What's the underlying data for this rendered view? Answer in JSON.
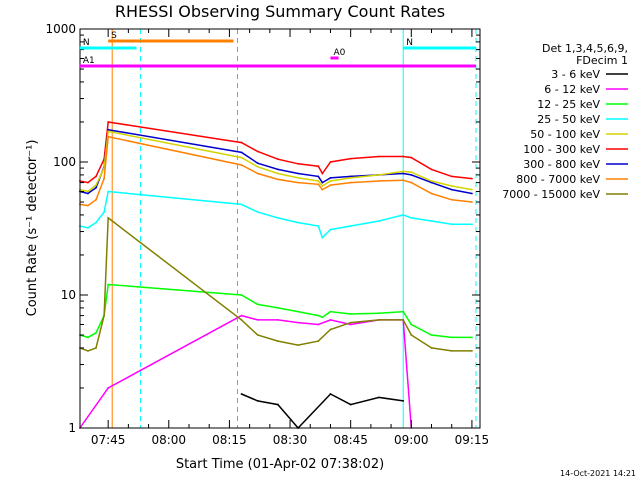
{
  "chart_data": {
    "type": "line",
    "title": "RHESSI Observing Summary Count Rates",
    "xlabel": "Start Time (01-Apr-02 07:38:02)",
    "ylabel": "Count Rate (s⁻¹ detector⁻¹)",
    "y_scale": "log",
    "ylim": [
      1,
      1000
    ],
    "xlim": [
      "07:38:02",
      "09:17:00"
    ],
    "x_ticks": [
      "07:45",
      "08:00",
      "08:15",
      "08:30",
      "08:45",
      "09:00",
      "09:15"
    ],
    "y_ticks": [
      "1",
      "10",
      "100",
      "1000"
    ],
    "legend": {
      "placement": "right",
      "header": [
        "Det 1,3,4,5,6,9,",
        "FDecim 1"
      ],
      "entries": [
        {
          "label": "3 - 6 keV",
          "color": "#000000"
        },
        {
          "label": "6 - 12 keV",
          "color": "#ff00ff"
        },
        {
          "label": "12 - 25 keV",
          "color": "#00ff00"
        },
        {
          "label": "25 - 50 keV",
          "color": "#00ffff"
        },
        {
          "label": "50 - 100 keV",
          "color": "#d4d400"
        },
        {
          "label": "100 - 300 keV",
          "color": "#ff0000"
        },
        {
          "label": "300 - 800 keV",
          "color": "#0000cc"
        },
        {
          "label": "800 - 7000 keV",
          "color": "#ff8000"
        },
        {
          "label": "7000 - 15000 keV",
          "color": "#808000"
        }
      ]
    },
    "flags": [
      {
        "label": "S",
        "color": "#ff8000",
        "start": "07:45",
        "end": "08:16"
      },
      {
        "label": "N",
        "color": "#00ffff",
        "start": "07:38",
        "end": "07:52"
      },
      {
        "label": "N",
        "color": "#00ffff",
        "start": "08:58",
        "end": "09:16"
      },
      {
        "label": "A0",
        "color": "#ff00ff",
        "start": "08:40",
        "end": "08:42"
      },
      {
        "label": "A1",
        "color": "#ff00ff",
        "start": "07:38",
        "end": "09:16"
      }
    ],
    "vertical_markers": [
      {
        "time": "07:46",
        "color": "#ff8000",
        "style": "solid"
      },
      {
        "time": "07:53",
        "color": "#00ffff",
        "style": "dashed"
      },
      {
        "time": "08:17",
        "color": "#ff8000",
        "style": "dashed"
      },
      {
        "time": "08:58",
        "color": "#00ffff",
        "style": "solid"
      },
      {
        "time": "09:16",
        "color": "#00ffff",
        "style": "dashed"
      }
    ],
    "series": [
      {
        "name": "100 - 300 keV",
        "color": "#ff0000",
        "points": [
          [
            "07:38",
            72
          ],
          [
            "07:40",
            70
          ],
          [
            "07:42",
            78
          ],
          [
            "07:44",
            105
          ],
          [
            "07:45",
            200
          ],
          [
            "08:18",
            140
          ],
          [
            "08:22",
            120
          ],
          [
            "08:27",
            105
          ],
          [
            "08:32",
            97
          ],
          [
            "08:37",
            93
          ],
          [
            "08:38",
            82
          ],
          [
            "08:40",
            100
          ],
          [
            "08:45",
            106
          ],
          [
            "08:52",
            110
          ],
          [
            "08:58",
            110
          ],
          [
            "09:00",
            108
          ],
          [
            "09:05",
            88
          ],
          [
            "09:10",
            78
          ],
          [
            "09:15",
            75
          ]
        ]
      },
      {
        "name": "300 - 800 keV",
        "color": "#0000cc",
        "points": [
          [
            "07:38",
            60
          ],
          [
            "07:40",
            58
          ],
          [
            "07:42",
            64
          ],
          [
            "07:44",
            92
          ],
          [
            "07:45",
            175
          ],
          [
            "08:18",
            118
          ],
          [
            "08:22",
            98
          ],
          [
            "08:27",
            88
          ],
          [
            "08:32",
            82
          ],
          [
            "08:37",
            78
          ],
          [
            "08:38",
            70
          ],
          [
            "08:40",
            76
          ],
          [
            "08:45",
            78
          ],
          [
            "08:52",
            80
          ],
          [
            "08:58",
            82
          ],
          [
            "09:00",
            80
          ],
          [
            "09:05",
            70
          ],
          [
            "09:10",
            62
          ],
          [
            "09:15",
            58
          ]
        ]
      },
      {
        "name": "50 - 100 keV",
        "color": "#d4d400",
        "points": [
          [
            "07:38",
            62
          ],
          [
            "07:40",
            60
          ],
          [
            "07:42",
            67
          ],
          [
            "07:44",
            90
          ],
          [
            "07:45",
            170
          ],
          [
            "08:18",
            108
          ],
          [
            "08:22",
            92
          ],
          [
            "08:27",
            82
          ],
          [
            "08:32",
            76
          ],
          [
            "08:37",
            72
          ],
          [
            "08:38",
            66
          ],
          [
            "08:40",
            72
          ],
          [
            "08:45",
            76
          ],
          [
            "08:52",
            80
          ],
          [
            "08:58",
            85
          ],
          [
            "09:00",
            84
          ],
          [
            "09:05",
            72
          ],
          [
            "09:10",
            66
          ],
          [
            "09:15",
            62
          ]
        ]
      },
      {
        "name": "800 - 7000 keV",
        "color": "#ff8000",
        "points": [
          [
            "07:38",
            48
          ],
          [
            "07:40",
            47
          ],
          [
            "07:42",
            52
          ],
          [
            "07:44",
            75
          ],
          [
            "07:45",
            155
          ],
          [
            "08:18",
            95
          ],
          [
            "08:22",
            82
          ],
          [
            "08:27",
            74
          ],
          [
            "08:32",
            70
          ],
          [
            "08:37",
            68
          ],
          [
            "08:38",
            62
          ],
          [
            "08:40",
            67
          ],
          [
            "08:45",
            70
          ],
          [
            "08:52",
            72
          ],
          [
            "08:58",
            73
          ],
          [
            "09:00",
            70
          ],
          [
            "09:05",
            58
          ],
          [
            "09:10",
            52
          ],
          [
            "09:15",
            50
          ]
        ]
      },
      {
        "name": "25 - 50 keV",
        "color": "#00ffff",
        "points": [
          [
            "07:38",
            33
          ],
          [
            "07:40",
            32
          ],
          [
            "07:42",
            35
          ],
          [
            "07:44",
            42
          ],
          [
            "07:45",
            60
          ],
          [
            "08:18",
            48
          ],
          [
            "08:22",
            42
          ],
          [
            "08:27",
            38
          ],
          [
            "08:32",
            35
          ],
          [
            "08:37",
            33
          ],
          [
            "08:38",
            27
          ],
          [
            "08:40",
            31
          ],
          [
            "08:45",
            33
          ],
          [
            "08:52",
            36
          ],
          [
            "08:58",
            40
          ],
          [
            "09:00",
            38
          ],
          [
            "09:05",
            36
          ],
          [
            "09:10",
            34
          ],
          [
            "09:15",
            34
          ]
        ]
      },
      {
        "name": "12 - 25 keV",
        "color": "#00ff00",
        "points": [
          [
            "07:38",
            5
          ],
          [
            "07:40",
            4.8
          ],
          [
            "07:42",
            5.2
          ],
          [
            "07:44",
            7
          ],
          [
            "07:45",
            12
          ],
          [
            "08:18",
            10
          ],
          [
            "08:22",
            8.5
          ],
          [
            "08:27",
            8
          ],
          [
            "08:32",
            7.5
          ],
          [
            "08:37",
            7
          ],
          [
            "08:38",
            6.8
          ],
          [
            "08:40",
            7.5
          ],
          [
            "08:45",
            7.2
          ],
          [
            "08:52",
            7.3
          ],
          [
            "08:58",
            7.5
          ],
          [
            "09:00",
            6
          ],
          [
            "09:05",
            5
          ],
          [
            "09:10",
            4.8
          ],
          [
            "09:15",
            4.8
          ]
        ]
      },
      {
        "name": "6 - 12 keV",
        "color": "#ff00ff",
        "points": [
          [
            "07:38",
            1
          ],
          [
            "07:45",
            2
          ],
          [
            "08:18",
            7
          ],
          [
            "08:22",
            6.5
          ],
          [
            "08:27",
            6.5
          ],
          [
            "08:32",
            6.2
          ],
          [
            "08:37",
            6
          ],
          [
            "08:40",
            6.5
          ],
          [
            "08:45",
            6
          ],
          [
            "08:52",
            6.5
          ],
          [
            "08:58",
            6.5
          ],
          [
            "09:00",
            1
          ]
        ]
      },
      {
        "name": "7000 - 15000 keV",
        "color": "#808000",
        "points": [
          [
            "07:38",
            4
          ],
          [
            "07:40",
            3.8
          ],
          [
            "07:42",
            4
          ],
          [
            "07:44",
            7
          ],
          [
            "07:45",
            38
          ],
          [
            "08:18",
            6.5
          ],
          [
            "08:22",
            5
          ],
          [
            "08:27",
            4.5
          ],
          [
            "08:32",
            4.2
          ],
          [
            "08:37",
            4.5
          ],
          [
            "08:40",
            5.5
          ],
          [
            "08:45",
            6.2
          ],
          [
            "08:52",
            6.5
          ],
          [
            "08:58",
            6.5
          ],
          [
            "09:00",
            5
          ],
          [
            "09:05",
            4
          ],
          [
            "09:10",
            3.8
          ],
          [
            "09:15",
            3.8
          ]
        ]
      },
      {
        "name": "3 - 6 keV",
        "color": "#000000",
        "points": [
          [
            "08:18",
            1.8
          ],
          [
            "08:22",
            1.6
          ],
          [
            "08:27",
            1.5
          ],
          [
            "08:32",
            1
          ],
          [
            "08:40",
            1.8
          ],
          [
            "08:45",
            1.5
          ],
          [
            "08:52",
            1.7
          ],
          [
            "08:58",
            1.6
          ]
        ]
      }
    ]
  },
  "footer": {
    "timestamp": "14-Oct-2021 14:21"
  }
}
